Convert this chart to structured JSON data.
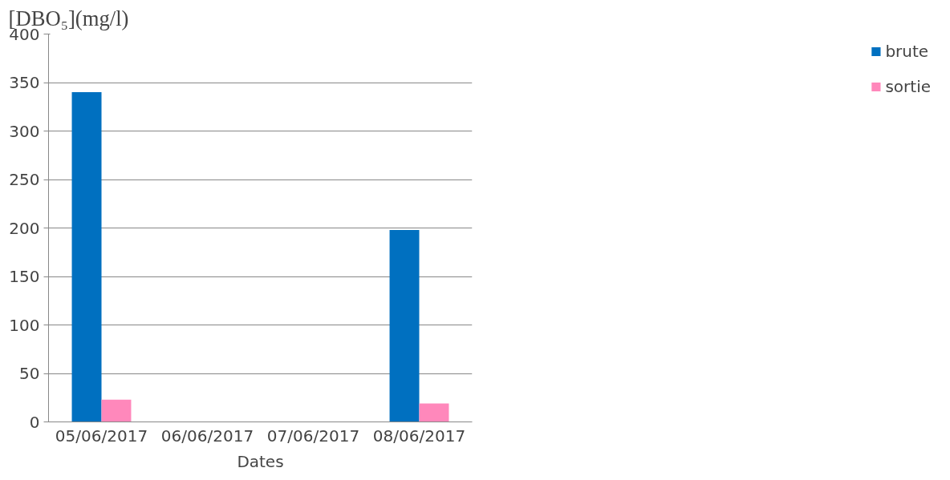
{
  "chart_data": {
    "type": "bar",
    "ylabel": "[DBO₅](mg/l)",
    "xlabel": "Dates",
    "categories": [
      "05/06/2017",
      "06/06/2017",
      "07/06/2017",
      "08/06/2017"
    ],
    "series": [
      {
        "name": "brute",
        "color": "#0070c0",
        "values": [
          340,
          null,
          null,
          198
        ]
      },
      {
        "name": "sortie",
        "color": "#ff88bb",
        "values": [
          23,
          null,
          null,
          19
        ]
      }
    ],
    "ylim": [
      0,
      400
    ],
    "yticks": [
      0,
      50,
      100,
      150,
      200,
      250,
      300,
      350,
      400
    ],
    "grid": "y",
    "legend": "right"
  }
}
